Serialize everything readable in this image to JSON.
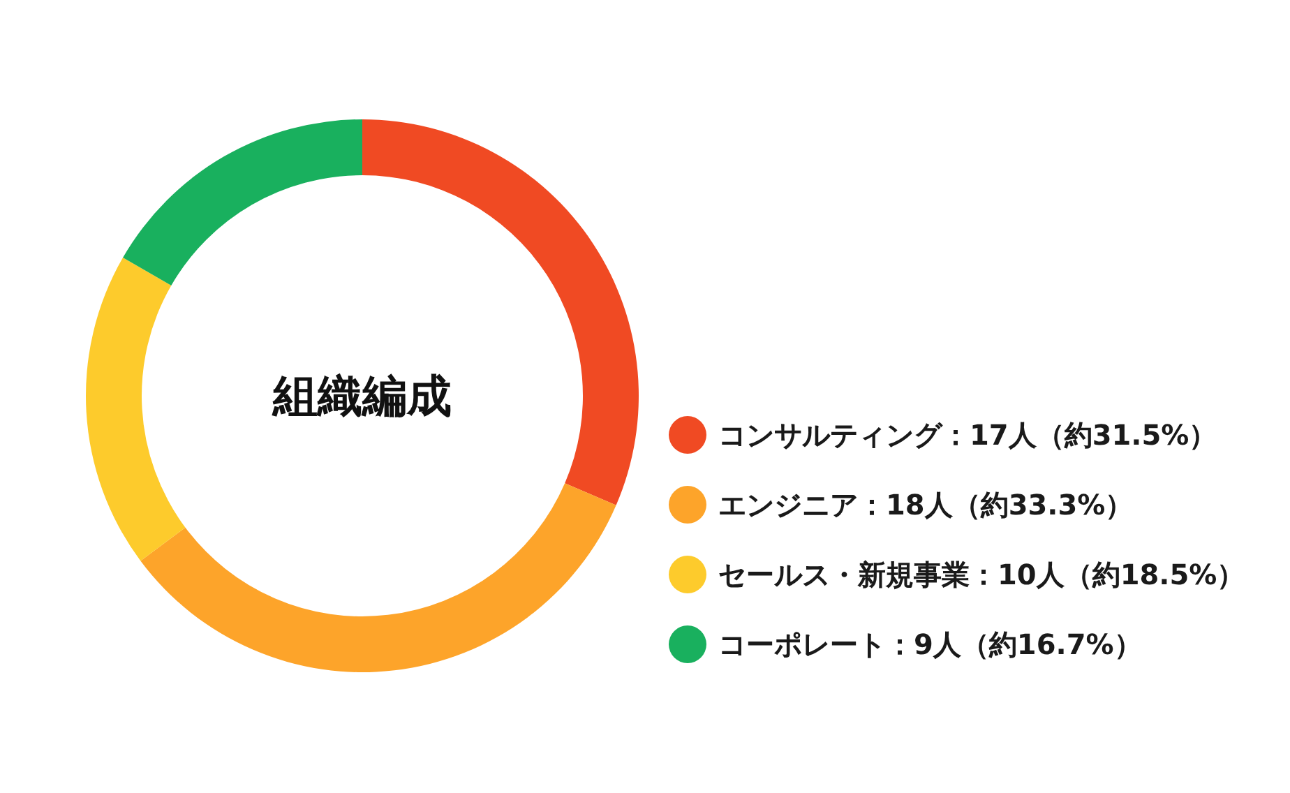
{
  "chart_data": {
    "type": "donut",
    "title": "組織編成",
    "categories": [
      "コンサルティング：17人（約31.5%）",
      "エンジニア：18人（約33.3%）",
      "セールス・新規事業：10人（約18.5%）",
      "コーポレート：9人（約16.7%）"
    ],
    "values": [
      17,
      18,
      10,
      9
    ],
    "colors": [
      "#f04a23",
      "#fda42a",
      "#fdcb2c",
      "#19b05e"
    ],
    "legend": "right"
  }
}
